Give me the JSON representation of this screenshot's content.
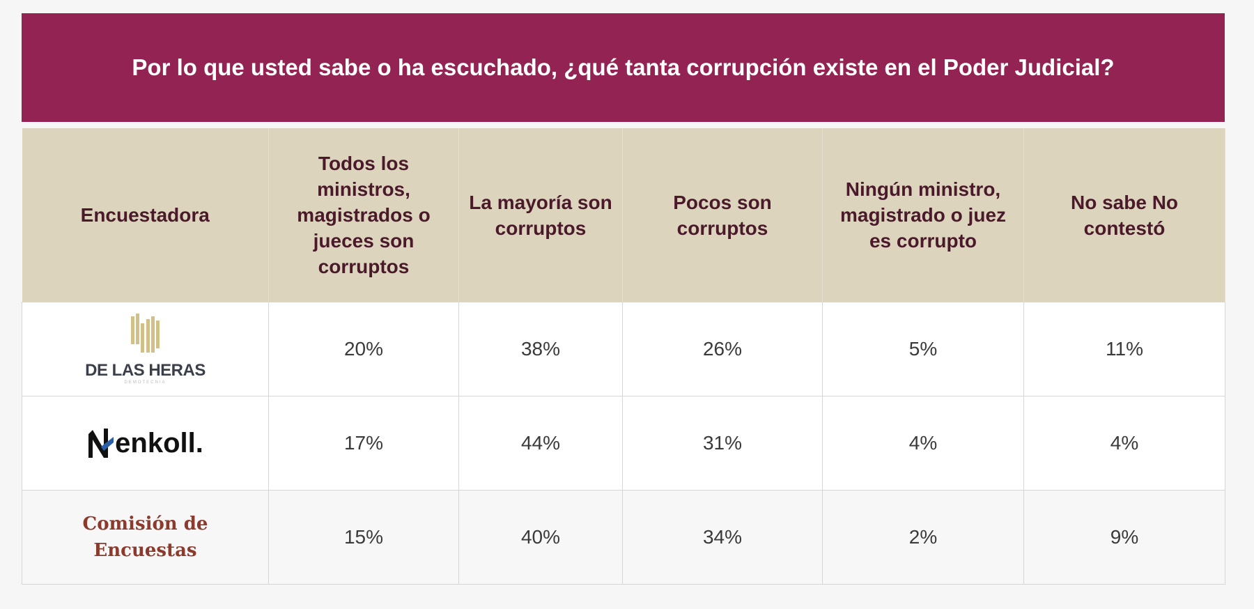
{
  "title": "Por lo que usted sabe o ha escuchado, ¿qué tanta corrupción existe en el Poder Judicial?",
  "colors": {
    "banner": "#922352",
    "header": "#ddd4bd",
    "header_text": "#4a1a2b"
  },
  "table": {
    "headers": [
      "Encuestadora",
      "Todos los ministros, magistrados o jueces son corruptos",
      "La mayoría son corruptos",
      "Pocos son corruptos",
      "Ningún ministro, magistrado o juez es corrupto",
      "No sabe No contestó"
    ],
    "rows": [
      {
        "pollster": "DE LAS HERAS",
        "pollster_sub": "DEMOTECNIA",
        "values": [
          "20%",
          "38%",
          "26%",
          "5%",
          "11%"
        ]
      },
      {
        "pollster": "enkoll.",
        "values": [
          "17%",
          "44%",
          "31%",
          "4%",
          "4%"
        ]
      },
      {
        "pollster": "Comisión de Encuestas",
        "values": [
          "15%",
          "40%",
          "34%",
          "2%",
          "9%"
        ]
      }
    ]
  }
}
